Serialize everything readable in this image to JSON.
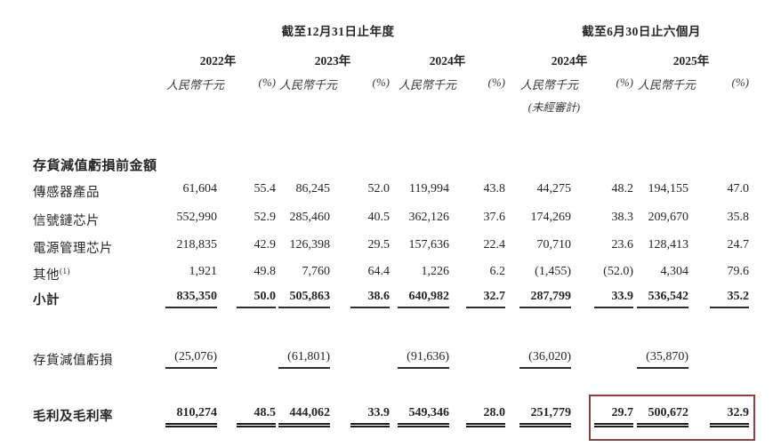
{
  "document": {
    "period_headers": {
      "annual": "截至12月31日止年度",
      "interim": "截至6月30日止六個月"
    },
    "year_headers": [
      "2022年",
      "2023年",
      "2024年",
      "2024年",
      "2025年"
    ],
    "unit_label": "人民幣千元",
    "percent_label": "(%)",
    "unaudited_label": "(未經審計)",
    "section_title": "存貨減值虧損前金額",
    "rows": [
      {
        "label": "傳感器產品",
        "values": [
          "61,604",
          "55.4",
          "86,245",
          "52.0",
          "119,994",
          "43.8",
          "44,275",
          "48.2",
          "194,155",
          "47.0"
        ]
      },
      {
        "label": "信號鏈芯片",
        "values": [
          "552,990",
          "52.9",
          "285,460",
          "40.5",
          "362,126",
          "37.6",
          "174,269",
          "38.3",
          "209,670",
          "35.8"
        ]
      },
      {
        "label": "電源管理芯片",
        "values": [
          "218,835",
          "42.9",
          "126,398",
          "29.5",
          "157,636",
          "22.4",
          "70,710",
          "23.6",
          "128,413",
          "24.7"
        ]
      },
      {
        "label": "其他",
        "footnote": "(1)",
        "values": [
          "1,921",
          "49.8",
          "7,760",
          "64.4",
          "1,226",
          "6.2",
          "(1,455)",
          "(52.0)",
          "4,304",
          "79.6"
        ]
      },
      {
        "label": "小計",
        "values": [
          "835,350",
          "50.0",
          "505,863",
          "38.6",
          "640,982",
          "32.7",
          "287,799",
          "33.9",
          "536,542",
          "35.2"
        ]
      }
    ],
    "impairment_row": {
      "label": "存貨減值虧損",
      "values": [
        "(25,076)",
        "(61,801)",
        "(91,636)",
        "(36,020)",
        "(35,870)"
      ]
    },
    "gross_row": {
      "label": "毛利及毛利率",
      "values": [
        "810,274",
        "48.5",
        "444,062",
        "33.9",
        "549,346",
        "28.0",
        "251,779",
        "29.7",
        "500,672",
        "32.9"
      ]
    },
    "highlight": {
      "border_color": "#963c3c"
    }
  }
}
